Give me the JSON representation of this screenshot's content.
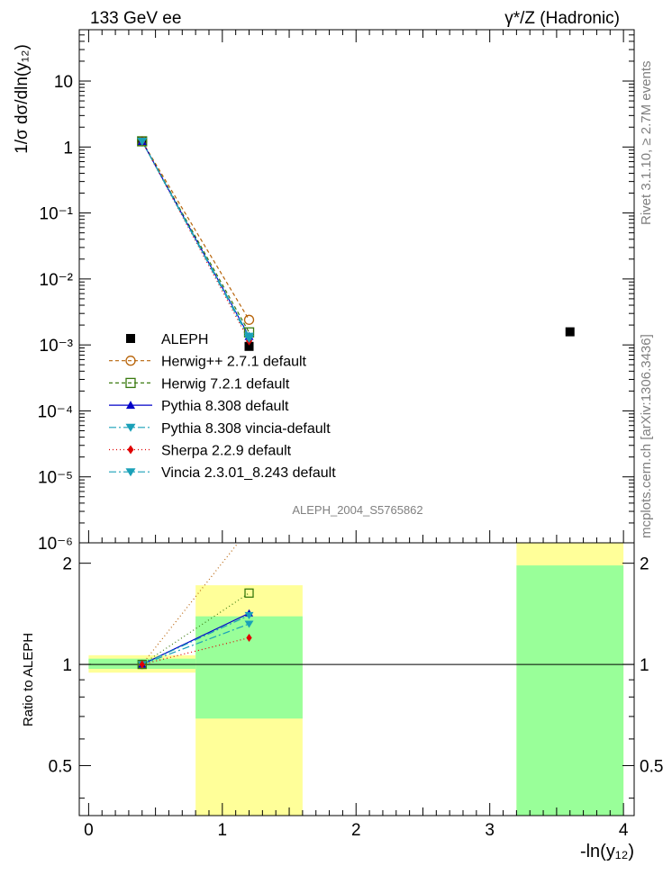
{
  "header": {
    "left": "133 GeV ee",
    "right": "γ*/Z (Hadronic)"
  },
  "side_labels": {
    "rivet": "Rivet 3.1.10, ≥ 2.7M events",
    "mcplots": "mcplots.cern.ch [arXiv:1306.3436]"
  },
  "watermark": "ALEPH_2004_S5765862",
  "colors": {
    "data": "#000000",
    "herwigpp": "#b8640a",
    "herwig7": "#3a7a10",
    "pythia": "#0000c8",
    "pythia_vincia": "#1aa0b8",
    "sherpa": "#e00000",
    "vincia": "#1aa0b8",
    "band_inner": "#99ff99",
    "band_outer": "#ffff99"
  },
  "chart_data": [
    {
      "type": "scatter",
      "panel": "main",
      "ylabel": "1/σ  dσ/dln(y₁₂)",
      "yscale": "log",
      "ylim": [
        1e-06,
        60
      ],
      "xlim": [
        -0.07,
        4.08
      ],
      "yticks": [
        {
          "v": 1e-06,
          "label": "10⁻⁶"
        },
        {
          "v": 1e-05,
          "label": "10⁻⁵"
        },
        {
          "v": 0.0001,
          "label": "10⁻⁴"
        },
        {
          "v": 0.001,
          "label": "10⁻³"
        },
        {
          "v": 0.01,
          "label": "10⁻²"
        },
        {
          "v": 0.1,
          "label": "10⁻¹"
        },
        {
          "v": 1,
          "label": "1"
        },
        {
          "v": 10,
          "label": "10"
        }
      ],
      "series": [
        {
          "name": "ALEPH",
          "key": "data",
          "marker": "square",
          "x": [
            0.4,
            1.2,
            3.6
          ],
          "y": [
            1.22,
            0.00095,
            0.00158
          ]
        },
        {
          "name": "Herwig++ 2.7.1 default",
          "key": "herwigpp",
          "marker": "circle-open",
          "dash": "4,3",
          "x": [
            0.4,
            1.2
          ],
          "y": [
            1.22,
            0.0024
          ]
        },
        {
          "name": "Herwig 7.2.1 default",
          "key": "herwig7",
          "marker": "square-open",
          "dash": "4,3",
          "x": [
            0.4,
            1.2
          ],
          "y": [
            1.22,
            0.00155
          ]
        },
        {
          "name": "Pythia 8.308 default",
          "key": "pythia",
          "marker": "triangle-up",
          "dash": "",
          "x": [
            0.4,
            1.2
          ],
          "y": [
            1.22,
            0.00135
          ]
        },
        {
          "name": "Pythia 8.308 vincia-default",
          "key": "pythia_vincia",
          "marker": "triangle-down",
          "dash": "8,3,2,3",
          "x": [
            0.4,
            1.2
          ],
          "y": [
            1.22,
            0.00135
          ]
        },
        {
          "name": "Sherpa 2.2.9 default",
          "key": "sherpa",
          "marker": "diamond",
          "dash": "1,3",
          "x": [
            0.4,
            1.2
          ],
          "y": [
            1.22,
            0.00115
          ]
        },
        {
          "name": "Vincia 2.3.01_8.243 default",
          "key": "vincia",
          "marker": "triangle-down",
          "dash": "8,3,2,3",
          "x": [
            0.4,
            1.2
          ],
          "y": [
            1.22,
            0.00125
          ]
        }
      ]
    },
    {
      "type": "line",
      "panel": "ratio",
      "ylabel": "Ratio to ALEPH",
      "xlabel": "-ln(y₁₂)",
      "yscale": "log",
      "ylim": [
        0.355,
        2.3
      ],
      "xlim": [
        -0.07,
        4.08
      ],
      "xticks": [
        0,
        1,
        2,
        3,
        4
      ],
      "yticks": [
        {
          "v": 0.5,
          "label": "0.5"
        },
        {
          "v": 1,
          "label": "1"
        },
        {
          "v": 2,
          "label": "2"
        }
      ],
      "bands": [
        {
          "x0": 0.0,
          "x1": 0.8,
          "outer": [
            0.945,
            1.065
          ],
          "inner": [
            0.97,
            1.04
          ]
        },
        {
          "x0": 0.8,
          "x1": 1.6,
          "outer": [
            0.355,
            1.72
          ],
          "inner": [
            0.69,
            1.39
          ]
        },
        {
          "x0": 3.2,
          "x1": 4.0,
          "outer": [
            0.355,
            2.3
          ],
          "inner": [
            0.355,
            1.97
          ]
        }
      ],
      "series": [
        {
          "name": "Herwig++ 2.7.1 default",
          "key": "herwigpp",
          "marker": "circle-open",
          "dash": "1,3",
          "x": [
            0.4,
            1.2
          ],
          "y": [
            1.0,
            2.53
          ]
        },
        {
          "name": "Herwig 7.2.1 default",
          "key": "herwig7",
          "marker": "square-open",
          "dash": "1,3",
          "x": [
            0.4,
            1.2
          ],
          "y": [
            1.0,
            1.63
          ]
        },
        {
          "name": "Pythia 8.308 default",
          "key": "pythia",
          "marker": "triangle-up",
          "dash": "",
          "x": [
            0.4,
            1.2
          ],
          "y": [
            1.0,
            1.42
          ]
        },
        {
          "name": "Pythia 8.308 vincia-default",
          "key": "pythia_vincia",
          "marker": "triangle-down",
          "dash": "8,3,2,3",
          "x": [
            0.4,
            1.2
          ],
          "y": [
            1.0,
            1.4
          ]
        },
        {
          "name": "Vincia 2.3.01_8.243 default",
          "key": "vincia",
          "marker": "triangle-down",
          "dash": "8,3,2,3",
          "x": [
            0.4,
            1.2
          ],
          "y": [
            1.0,
            1.32
          ]
        },
        {
          "name": "Sherpa 2.2.9 default",
          "key": "sherpa",
          "marker": "diamond",
          "dash": "1,3",
          "x": [
            0.4,
            1.2
          ],
          "y": [
            1.0,
            1.2
          ]
        }
      ]
    }
  ]
}
